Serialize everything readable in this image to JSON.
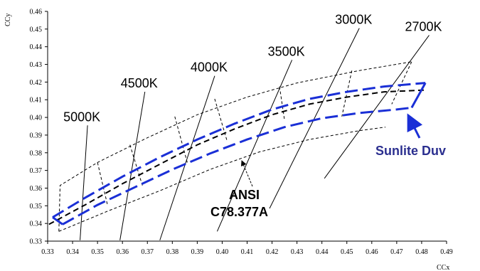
{
  "chart_data": {
    "type": "line",
    "title": "",
    "xlabel": "CCx",
    "ylabel": "CCy",
    "xlim": [
      0.33,
      0.49
    ],
    "ylim": [
      0.33,
      0.46
    ],
    "x_ticks": [
      "0.33",
      "0.34",
      "0.35",
      "0.36",
      "0.37",
      "0.38",
      "0.39",
      "0.40",
      "0.41",
      "0.42",
      "0.43",
      "0.44",
      "0.45",
      "0.46",
      "0.47",
      "0.48",
      "0.49"
    ],
    "y_ticks": [
      "0.33",
      "0.34",
      "0.35",
      "0.36",
      "0.37",
      "0.38",
      "0.39",
      "0.40",
      "0.41",
      "0.42",
      "0.43",
      "0.44",
      "0.45",
      "0.46"
    ],
    "grid": false,
    "colors": {
      "ansi": "#000000",
      "sunlite": "#1a2fd6",
      "sunlite_label": "#2b2f8f"
    },
    "series": [
      {
        "name": "ANSI C78.377A",
        "style": "dashed-black",
        "points": [
          [
            0.3305,
            0.3395
          ],
          [
            0.345,
            0.3505
          ],
          [
            0.36,
            0.3625
          ],
          [
            0.375,
            0.3735
          ],
          [
            0.39,
            0.3845
          ],
          [
            0.405,
            0.3935
          ],
          [
            0.42,
            0.4015
          ],
          [
            0.435,
            0.4075
          ],
          [
            0.45,
            0.4115
          ],
          [
            0.465,
            0.4145
          ],
          [
            0.4815,
            0.4155
          ]
        ]
      },
      {
        "name": "ANSI upper",
        "style": "dashed-black-thin",
        "points": [
          [
            0.3345,
            0.3355
          ],
          [
            0.335,
            0.3615
          ],
          [
            0.35,
            0.3745
          ],
          [
            0.37,
            0.3885
          ],
          [
            0.39,
            0.4015
          ],
          [
            0.41,
            0.4115
          ],
          [
            0.43,
            0.4195
          ],
          [
            0.455,
            0.4265
          ],
          [
            0.476,
            0.4315
          ]
        ]
      },
      {
        "name": "ANSI lower",
        "style": "dashed-black-thin",
        "points": [
          [
            0.3345,
            0.3355
          ],
          [
            0.355,
            0.3475
          ],
          [
            0.375,
            0.3585
          ],
          [
            0.395,
            0.3705
          ],
          [
            0.415,
            0.3805
          ],
          [
            0.435,
            0.3875
          ],
          [
            0.455,
            0.3925
          ],
          [
            0.4655,
            0.3945
          ]
        ]
      },
      {
        "name": "ANSI quadrangle dividers",
        "style": "dashed-black-thin",
        "segments": [
          [
            [
              0.35,
              0.3745
            ],
            [
              0.354,
              0.3505
            ]
          ],
          [
            [
              0.363,
              0.3845
            ],
            [
              0.368,
              0.3615
            ]
          ],
          [
            [
              0.381,
              0.4005
            ],
            [
              0.386,
              0.3745
            ]
          ],
          [
            [
              0.397,
              0.4105
            ],
            [
              0.402,
              0.3865
            ]
          ],
          [
            [
              0.423,
              0.4175
            ],
            [
              0.425,
              0.3985
            ]
          ],
          [
            [
              0.452,
              0.4265
            ],
            [
              0.448,
              0.4005
            ]
          ],
          [
            [
              0.476,
              0.4315
            ],
            [
              0.468,
              0.4075
            ]
          ]
        ]
      },
      {
        "name": "Sunlite Duv",
        "style": "dashed-blue",
        "upper": [
          [
            0.332,
            0.3435
          ],
          [
            0.345,
            0.3545
          ],
          [
            0.36,
            0.3665
          ],
          [
            0.375,
            0.3775
          ],
          [
            0.39,
            0.3875
          ],
          [
            0.405,
            0.3965
          ],
          [
            0.42,
            0.4045
          ],
          [
            0.435,
            0.4105
          ],
          [
            0.45,
            0.4145
          ],
          [
            0.465,
            0.4175
          ],
          [
            0.4815,
            0.4195
          ]
        ],
        "lower": [
          [
            0.336,
            0.3395
          ],
          [
            0.35,
            0.3505
          ],
          [
            0.365,
            0.3605
          ],
          [
            0.38,
            0.3705
          ],
          [
            0.395,
            0.3795
          ],
          [
            0.41,
            0.3875
          ],
          [
            0.425,
            0.3945
          ],
          [
            0.44,
            0.3995
          ],
          [
            0.455,
            0.4025
          ],
          [
            0.47,
            0.4045
          ],
          [
            0.476,
            0.4055
          ]
        ]
      }
    ],
    "cct_lines": [
      {
        "label": "5000K",
        "x1": 0.343,
        "y1": 0.3305,
        "x2": 0.346,
        "y2": 0.3955
      },
      {
        "label": "4500K",
        "x1": 0.359,
        "y1": 0.3305,
        "x2": 0.369,
        "y2": 0.4145
      },
      {
        "label": "4000K",
        "x1": 0.375,
        "y1": 0.3305,
        "x2": 0.397,
        "y2": 0.4235
      },
      {
        "label": "3500K",
        "x1": 0.398,
        "y1": 0.3355,
        "x2": 0.428,
        "y2": 0.4325
      },
      {
        "label": "3000K",
        "x1": 0.419,
        "y1": 0.3485,
        "x2": 0.455,
        "y2": 0.4505
      },
      {
        "label": "2700K",
        "x1": 0.441,
        "y1": 0.3655,
        "x2": 0.483,
        "y2": 0.4465
      }
    ],
    "annotations": {
      "ansi_label": [
        "ANSI",
        "C78.377A"
      ],
      "sunlite_label": "Sunlite Duv"
    }
  }
}
